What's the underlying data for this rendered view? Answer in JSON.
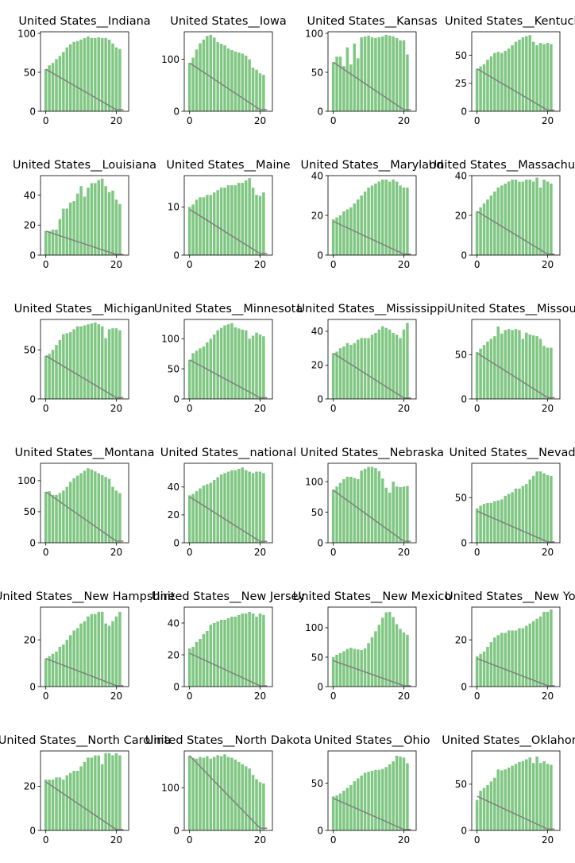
{
  "colors": {
    "bar": "#81c784",
    "trend": "#808080",
    "axis": "#000000",
    "background": "#ffffff"
  },
  "chart_data": [
    {
      "type": "bar",
      "title": "United States__Indiana",
      "x_ticks": [
        0,
        20
      ],
      "y_ticks": [
        0,
        50,
        100
      ],
      "xlim": [
        -1.5,
        23.5
      ],
      "ylim": [
        0,
        102
      ],
      "values": [
        54,
        59,
        62,
        67,
        71,
        76,
        82,
        86,
        89,
        90,
        92,
        94,
        96,
        94,
        94,
        95,
        94,
        94,
        92,
        87,
        82,
        80
      ],
      "trend": {
        "x": [
          0,
          20,
          22
        ],
        "y": [
          54,
          2,
          2
        ]
      }
    },
    {
      "type": "bar",
      "title": "United States__Iowa",
      "x_ticks": [
        0,
        20
      ],
      "y_ticks": [
        0,
        100
      ],
      "xlim": [
        -1.5,
        23.5
      ],
      "ylim": [
        0,
        153
      ],
      "values": [
        93,
        103,
        119,
        131,
        138,
        145,
        147,
        142,
        133,
        130,
        127,
        121,
        118,
        115,
        113,
        111,
        107,
        100,
        84,
        80,
        73,
        70
      ],
      "trend": {
        "x": [
          0,
          20,
          22
        ],
        "y": [
          93,
          3,
          3
        ]
      }
    },
    {
      "type": "bar",
      "title": "United States__Kansas",
      "x_ticks": [
        0,
        20
      ],
      "y_ticks": [
        0,
        50,
        100
      ],
      "xlim": [
        -1.5,
        23.5
      ],
      "ylim": [
        0,
        102
      ],
      "values": [
        63,
        70,
        70,
        58,
        82,
        60,
        87,
        68,
        95,
        96,
        97,
        95,
        94,
        95,
        96,
        98,
        97,
        96,
        94,
        91,
        91,
        73
      ],
      "trend": {
        "x": [
          0,
          20,
          22
        ],
        "y": [
          63,
          2,
          2
        ]
      }
    },
    {
      "type": "bar",
      "title": "United States__Kentucky",
      "x_ticks": [
        0,
        20
      ],
      "y_ticks": [
        0,
        25,
        50
      ],
      "xlim": [
        -1.5,
        23.5
      ],
      "ylim": [
        0,
        71
      ],
      "values": [
        38,
        40,
        42,
        46,
        49,
        52,
        53,
        52,
        54,
        56,
        59,
        62,
        64,
        66,
        67,
        68,
        62,
        59,
        61,
        60,
        61,
        60
      ],
      "trend": {
        "x": [
          0,
          20,
          22
        ],
        "y": [
          38,
          1,
          1
        ]
      }
    },
    {
      "type": "bar",
      "title": "United States__Louisiana",
      "x_ticks": [
        0,
        20
      ],
      "y_ticks": [
        0,
        20,
        40
      ],
      "xlim": [
        -1.5,
        23.5
      ],
      "ylim": [
        0,
        53
      ],
      "values": [
        16,
        16,
        17,
        17,
        24,
        31,
        31,
        35,
        36,
        41,
        46,
        39,
        45,
        48,
        48,
        50,
        51,
        46,
        42,
        43,
        37,
        34
      ],
      "trend": {
        "x": [
          0,
          20,
          22
        ],
        "y": [
          16,
          0.4,
          0.4
        ]
      }
    },
    {
      "type": "bar",
      "title": "United States__Maine",
      "x_ticks": [
        0,
        20
      ],
      "y_ticks": [
        0,
        10
      ],
      "xlim": [
        -1.5,
        23.5
      ],
      "ylim": [
        0,
        16.5
      ],
      "values": [
        10,
        10.5,
        11.5,
        12,
        12,
        12.5,
        12.5,
        13,
        13.5,
        14,
        14,
        14.5,
        14.5,
        14.5,
        15,
        15,
        15.5,
        16,
        14,
        12.5,
        12.3,
        13
      ],
      "trend": {
        "x": [
          0,
          20,
          22
        ],
        "y": [
          9.5,
          0.3,
          0.3
        ]
      }
    },
    {
      "type": "bar",
      "title": "United States__Maryland",
      "x_ticks": [
        0,
        20
      ],
      "y_ticks": [
        0,
        20,
        40
      ],
      "xlim": [
        -1.5,
        23.5
      ],
      "ylim": [
        0,
        40
      ],
      "values": [
        18,
        19,
        20,
        22,
        23,
        24,
        26,
        28,
        30,
        32,
        34,
        35,
        36,
        37,
        38,
        38,
        37,
        38,
        37,
        35,
        34,
        34
      ],
      "trend": {
        "x": [
          0,
          20,
          22
        ],
        "y": [
          17,
          0.5,
          0.5
        ]
      }
    },
    {
      "type": "bar",
      "title": "United States__Massachusetts",
      "x_ticks": [
        0,
        20
      ],
      "y_ticks": [
        0,
        20,
        40
      ],
      "xlim": [
        -1.5,
        23.5
      ],
      "ylim": [
        0,
        40
      ],
      "values": [
        22,
        24,
        26,
        28,
        30,
        32,
        34,
        35,
        36,
        37,
        38,
        38,
        37,
        37,
        38,
        38,
        37,
        39,
        34,
        38,
        37,
        36
      ],
      "trend": {
        "x": [
          0,
          20,
          22
        ],
        "y": [
          22,
          0.5,
          0.5
        ]
      }
    },
    {
      "type": "bar",
      "title": "United States__Michigan",
      "x_ticks": [
        0,
        20
      ],
      "y_ticks": [
        0,
        50
      ],
      "xlim": [
        -1.5,
        23.5
      ],
      "ylim": [
        0,
        81
      ],
      "values": [
        44,
        46,
        50,
        55,
        60,
        66,
        67,
        68,
        71,
        74,
        74,
        75,
        76,
        77,
        78,
        76,
        74,
        62,
        71,
        72,
        72,
        70
      ],
      "trend": {
        "x": [
          0,
          20,
          22
        ],
        "y": [
          44,
          1.3,
          1.3
        ]
      }
    },
    {
      "type": "bar",
      "title": "United States__Minnesota",
      "x_ticks": [
        0,
        20
      ],
      "y_ticks": [
        0,
        50,
        100
      ],
      "xlim": [
        -1.5,
        23.5
      ],
      "ylim": [
        0,
        132
      ],
      "values": [
        65,
        76,
        80,
        84,
        87,
        94,
        100,
        107,
        114,
        118,
        122,
        124,
        126,
        119,
        117,
        115,
        114,
        100,
        105,
        110,
        107,
        104
      ],
      "trend": {
        "x": [
          0,
          20,
          22
        ],
        "y": [
          65,
          2,
          2
        ]
      }
    },
    {
      "type": "bar",
      "title": "United States__Mississippi",
      "x_ticks": [
        0,
        20
      ],
      "y_ticks": [
        0,
        20,
        40
      ],
      "xlim": [
        -1.5,
        23.5
      ],
      "ylim": [
        0,
        47
      ],
      "values": [
        27,
        28,
        30,
        31,
        33,
        32,
        33,
        35,
        36,
        36,
        36,
        38,
        39,
        41,
        43,
        42,
        41,
        39,
        38,
        36,
        41,
        45
      ],
      "trend": {
        "x": [
          0,
          20,
          22
        ],
        "y": [
          27,
          0.6,
          0.6
        ]
      }
    },
    {
      "type": "bar",
      "title": "United States__Missouri",
      "x_ticks": [
        0,
        20
      ],
      "y_ticks": [
        0,
        50
      ],
      "xlim": [
        -1.5,
        23.5
      ],
      "ylim": [
        0,
        90
      ],
      "values": [
        53,
        57,
        61,
        65,
        68,
        71,
        82,
        74,
        78,
        79,
        78,
        79,
        78,
        68,
        75,
        73,
        72,
        71,
        68,
        60,
        58,
        58
      ],
      "trend": {
        "x": [
          0,
          20,
          22
        ],
        "y": [
          52,
          1.5,
          1.5
        ]
      }
    },
    {
      "type": "bar",
      "title": "United States__Montana",
      "x_ticks": [
        0,
        20
      ],
      "y_ticks": [
        0,
        50,
        100
      ],
      "xlim": [
        -1.5,
        23.5
      ],
      "ylim": [
        0,
        128
      ],
      "values": [
        82,
        83,
        77,
        77,
        80,
        84,
        90,
        98,
        104,
        108,
        112,
        116,
        120,
        118,
        115,
        112,
        109,
        106,
        103,
        90,
        84,
        80
      ],
      "trend": {
        "x": [
          0,
          20,
          22
        ],
        "y": [
          82,
          2.5,
          2.5
        ]
      }
    },
    {
      "type": "bar",
      "title": "United States__national",
      "x_ticks": [
        0,
        20
      ],
      "y_ticks": [
        0,
        20,
        40
      ],
      "xlim": [
        -1.5,
        23.5
      ],
      "ylim": [
        0,
        57
      ],
      "values": [
        34,
        35,
        37,
        39,
        41,
        42,
        43,
        45,
        47,
        49,
        50,
        51,
        52,
        52,
        53,
        54,
        52,
        51,
        50,
        51,
        51,
        50
      ],
      "trend": {
        "x": [
          0,
          20,
          22
        ],
        "y": [
          33,
          1,
          1
        ]
      }
    },
    {
      "type": "bar",
      "title": "United States__Nebraska",
      "x_ticks": [
        0,
        20
      ],
      "y_ticks": [
        0,
        50,
        100
      ],
      "xlim": [
        -1.5,
        23.5
      ],
      "ylim": [
        0,
        130
      ],
      "values": [
        87,
        92,
        98,
        104,
        108,
        108,
        106,
        104,
        118,
        121,
        124,
        124,
        122,
        117,
        105,
        90,
        82,
        100,
        92,
        91,
        92,
        93
      ],
      "trend": {
        "x": [
          0,
          20,
          22
        ],
        "y": [
          86,
          2.5,
          2.5
        ]
      }
    },
    {
      "type": "bar",
      "title": "United States__Nevada",
      "x_ticks": [
        0,
        20
      ],
      "y_ticks": [
        0,
        50
      ],
      "xlim": [
        -1.5,
        23.5
      ],
      "ylim": [
        0,
        88
      ],
      "values": [
        38,
        41,
        43,
        44,
        44,
        46,
        47,
        48,
        52,
        54,
        56,
        60,
        60,
        63,
        65,
        70,
        74,
        79,
        79,
        77,
        75,
        74
      ],
      "trend": {
        "x": [
          0,
          20,
          22
        ],
        "y": [
          35,
          1,
          1
        ]
      }
    },
    {
      "type": "bar",
      "title": "United States__New Hampshire",
      "x_ticks": [
        0,
        20
      ],
      "y_ticks": [
        0,
        20
      ],
      "xlim": [
        -1.5,
        23.5
      ],
      "ylim": [
        0,
        34
      ],
      "values": [
        12,
        13,
        14,
        15,
        17,
        18,
        20,
        22,
        24,
        25,
        27,
        28,
        30,
        31,
        31,
        32,
        32,
        27,
        26,
        28,
        30,
        32
      ],
      "trend": {
        "x": [
          0,
          20,
          22
        ],
        "y": [
          12,
          0.4,
          0.4
        ]
      }
    },
    {
      "type": "bar",
      "title": "United States__New Jersey",
      "x_ticks": [
        0,
        20
      ],
      "y_ticks": [
        0,
        20,
        40
      ],
      "xlim": [
        -1.5,
        23.5
      ],
      "ylim": [
        0,
        50
      ],
      "values": [
        24,
        25,
        28,
        30,
        33,
        35,
        39,
        40,
        41,
        42,
        42,
        43,
        44,
        44,
        45,
        46,
        46,
        47,
        46,
        44,
        46,
        45
      ],
      "trend": {
        "x": [
          0,
          20,
          22
        ],
        "y": [
          21,
          0.5,
          0.5
        ]
      }
    },
    {
      "type": "bar",
      "title": "United States__New Mexico",
      "x_ticks": [
        0,
        20
      ],
      "y_ticks": [
        0,
        50,
        100
      ],
      "xlim": [
        -1.5,
        23.5
      ],
      "ylim": [
        0,
        135
      ],
      "values": [
        50,
        54,
        57,
        60,
        64,
        66,
        64,
        63,
        62,
        65,
        74,
        84,
        94,
        105,
        117,
        126,
        127,
        118,
        106,
        98,
        92,
        88
      ],
      "trend": {
        "x": [
          0,
          20,
          22
        ],
        "y": [
          44,
          1.5,
          1.5
        ]
      }
    },
    {
      "type": "bar",
      "title": "United States__New York",
      "x_ticks": [
        0,
        20
      ],
      "y_ticks": [
        0,
        20
      ],
      "xlim": [
        -1.5,
        23.5
      ],
      "ylim": [
        0,
        34
      ],
      "values": [
        13,
        14,
        15,
        17,
        19,
        21,
        22,
        23,
        23,
        24,
        24,
        24,
        25,
        25,
        26,
        27,
        28,
        29,
        30,
        32,
        32,
        33
      ],
      "trend": {
        "x": [
          0,
          20,
          22
        ],
        "y": [
          12,
          0.4,
          0.4
        ]
      }
    },
    {
      "type": "bar",
      "title": "United States__North Carolina",
      "x_ticks": [
        0,
        20
      ],
      "y_ticks": [
        0,
        20
      ],
      "xlim": [
        -1.5,
        23.5
      ],
      "ylim": [
        0,
        36
      ],
      "values": [
        23,
        23,
        23,
        24,
        24,
        23,
        25,
        26,
        27,
        27,
        29,
        31,
        33,
        33,
        34,
        34,
        30,
        35,
        35,
        34,
        35,
        34
      ],
      "trend": {
        "x": [
          0,
          20,
          22
        ],
        "y": [
          22,
          0.4,
          0.4
        ]
      }
    },
    {
      "type": "bar",
      "title": "United States__North Dakota",
      "x_ticks": [
        0,
        20
      ],
      "y_ticks": [
        0,
        100
      ],
      "xlim": [
        -1.5,
        23.5
      ],
      "ylim": [
        0,
        186
      ],
      "values": [
        175,
        170,
        168,
        172,
        170,
        174,
        168,
        172,
        176,
        174,
        178,
        172,
        170,
        166,
        160,
        155,
        150,
        145,
        130,
        120,
        113,
        110
      ],
      "trend": {
        "x": [
          0,
          20,
          22
        ],
        "y": [
          175,
          5,
          5
        ]
      }
    },
    {
      "type": "bar",
      "title": "United States__Ohio",
      "x_ticks": [
        0,
        20
      ],
      "y_ticks": [
        0,
        50
      ],
      "xlim": [
        -1.5,
        23.5
      ],
      "ylim": [
        0,
        84
      ],
      "values": [
        36,
        37,
        39,
        42,
        45,
        48,
        52,
        55,
        58,
        61,
        62,
        63,
        64,
        64,
        65,
        67,
        70,
        73,
        79,
        78,
        77,
        71
      ],
      "trend": {
        "x": [
          0,
          20,
          22
        ],
        "y": [
          34,
          1,
          1
        ]
      }
    },
    {
      "type": "bar",
      "title": "United States__Oklahoma",
      "x_ticks": [
        0,
        20
      ],
      "y_ticks": [
        0,
        50
      ],
      "xlim": [
        -1.5,
        23.5
      ],
      "ylim": [
        0,
        86
      ],
      "values": [
        33,
        43,
        46,
        49,
        53,
        57,
        66,
        65,
        66,
        68,
        70,
        72,
        74,
        75,
        77,
        79,
        73,
        80,
        73,
        75,
        72,
        71
      ],
      "trend": {
        "x": [
          0,
          20,
          22
        ],
        "y": [
          37,
          1.5,
          1.5
        ]
      }
    }
  ]
}
